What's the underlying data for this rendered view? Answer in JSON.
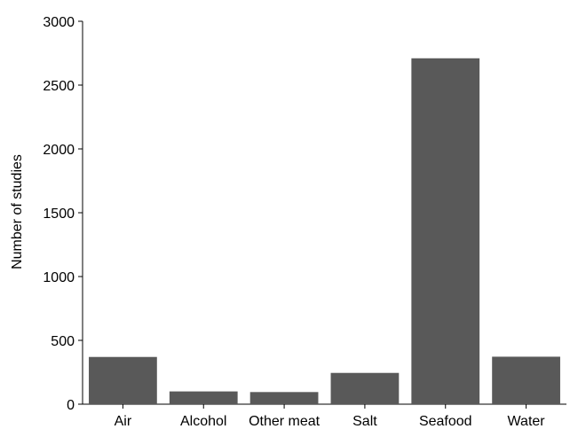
{
  "chart_data": {
    "type": "bar",
    "categories": [
      "Air",
      "Alcohol",
      "Other meat",
      "Salt",
      "Seafood",
      "Water"
    ],
    "values": [
      370,
      100,
      95,
      245,
      2710,
      372
    ],
    "ylabel": "Number of studies",
    "xlabel": "",
    "ylim": [
      0,
      3000
    ],
    "yticks": [
      0,
      500,
      1000,
      1500,
      2000,
      2500,
      3000
    ],
    "grid": false,
    "bar_color": "#595959"
  }
}
